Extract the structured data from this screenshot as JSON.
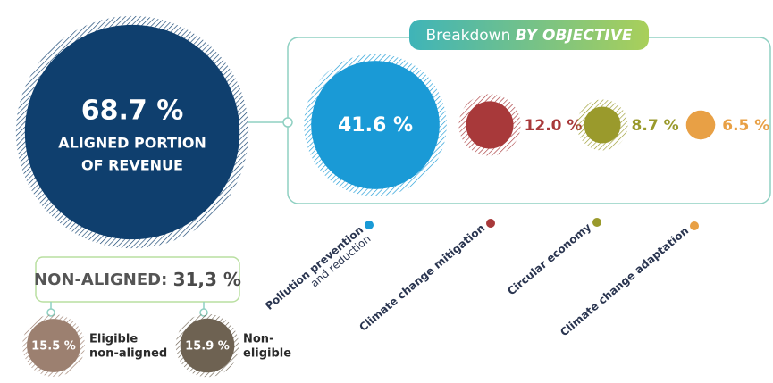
{
  "aligned": {
    "value": 68.7,
    "label": "68.7 %",
    "caption": [
      "ALIGNED PORTION",
      "OF REVENUE"
    ],
    "color": "#0f3f6e"
  },
  "breakdown": {
    "title": "Breakdown",
    "title_emphasis": "BY OBJECTIVE",
    "items": [
      {
        "name": "Pollution prevention",
        "subname": "and reduction",
        "value": 41.6,
        "label": "41.6 %",
        "color": "#1a9ad6"
      },
      {
        "name": "Climate change mitigation",
        "value": 12.0,
        "label": "12.0 %",
        "color": "#a8393a"
      },
      {
        "name": "Circular  economy",
        "value": 8.7,
        "label": "8.7 %",
        "color": "#9a9a2c"
      },
      {
        "name": "Climate change adaptation",
        "value": 6.5,
        "label": "6.5 %",
        "color": "#e8a045"
      }
    ]
  },
  "non_aligned": {
    "title": "NON-ALIGNED:",
    "label": "31,3 %",
    "items": [
      {
        "value": 15.5,
        "label": "15.5 %",
        "caption": [
          "Eligible",
          "non-aligned"
        ],
        "color": "#9c8070"
      },
      {
        "value": 15.9,
        "label": "15.9 %",
        "caption": [
          "Non-",
          "eligible"
        ],
        "color": "#6e6252"
      }
    ]
  }
}
